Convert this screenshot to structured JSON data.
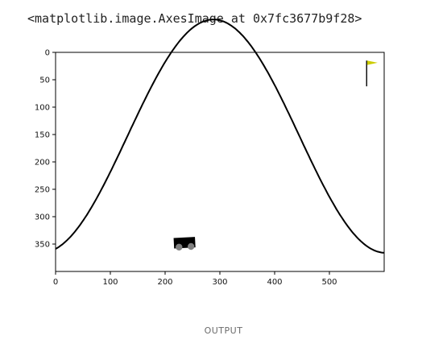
{
  "output": {
    "repr_text": "<matplotlib.image.AxesImage at 0x7fc3677b9f28>",
    "footer_label": "OUTPUT"
  },
  "chart_data": {
    "type": "image",
    "xlim": [
      0,
      600
    ],
    "ylim": [
      400,
      0
    ],
    "xticks": [
      0,
      100,
      200,
      300,
      400,
      500
    ],
    "yticks": [
      0,
      50,
      100,
      150,
      200,
      250,
      300,
      350
    ],
    "colors": {
      "track": "#000000",
      "flag": "#cccc00",
      "wheel": "#7f7f7f",
      "car": "#000000"
    }
  }
}
